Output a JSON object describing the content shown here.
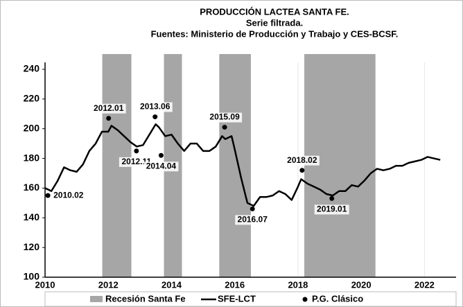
{
  "chart_data": {
    "type": "line",
    "title": "PRODUCCIÓN LACTEA SANTA FE.",
    "subtitle": "Serie filtrada.",
    "source": "Fuentes: Ministerio de Producción y Trabajo y CES-BCSF.",
    "xlim": [
      2010,
      2023
    ],
    "xticks": [
      2010,
      2012,
      2014,
      2016,
      2018,
      2020,
      2022
    ],
    "ylim": [
      100,
      240
    ],
    "yticks": [
      100,
      120,
      140,
      160,
      180,
      200,
      220,
      240
    ],
    "bands": {
      "name": "Recesión Santa Fe",
      "color": "#a6a6a6",
      "ranges": [
        [
          2011.81,
          2012.73
        ],
        [
          2013.76,
          2014.33
        ],
        [
          2015.51,
          2016.51
        ],
        [
          2018.2,
          2020.45
        ]
      ]
    },
    "series": [
      {
        "name": "SFE-LCT",
        "color": "#000000",
        "x": [
          2010.0,
          2010.2,
          2010.4,
          2010.6,
          2010.8,
          2011.0,
          2011.2,
          2011.4,
          2011.6,
          2011.8,
          2012.0,
          2012.1,
          2012.3,
          2012.5,
          2012.7,
          2012.9,
          2013.1,
          2013.3,
          2013.5,
          2013.6,
          2013.8,
          2014.0,
          2014.2,
          2014.4,
          2014.6,
          2014.8,
          2015.0,
          2015.2,
          2015.4,
          2015.6,
          2015.7,
          2015.9,
          2016.0,
          2016.2,
          2016.4,
          2016.6,
          2016.8,
          2017.0,
          2017.2,
          2017.4,
          2017.6,
          2017.8,
          2018.0,
          2018.1,
          2018.3,
          2018.5,
          2018.7,
          2018.9,
          2019.1,
          2019.3,
          2019.5,
          2019.7,
          2019.9,
          2020.1,
          2020.3,
          2020.5,
          2020.7,
          2020.9,
          2021.1,
          2021.3,
          2021.5,
          2021.7,
          2021.9,
          2022.1,
          2022.3,
          2022.5
        ],
        "values": [
          160,
          158,
          165,
          174,
          172,
          171,
          176,
          185,
          190,
          198,
          198,
          202,
          199,
          195,
          191,
          188,
          189,
          196,
          203,
          201,
          195,
          196,
          190,
          185,
          190,
          190,
          185,
          185,
          188,
          195,
          193,
          195,
          186,
          167,
          150,
          148,
          154,
          154,
          155,
          158,
          156,
          152,
          161,
          166,
          163,
          161,
          159,
          156,
          155,
          158,
          158,
          162,
          161,
          165,
          170,
          173,
          172,
          173,
          175,
          175,
          177,
          178,
          179,
          181,
          180,
          179
        ]
      }
    ],
    "points": {
      "name": "P.G. Clásico",
      "color": "#000000",
      "x": [
        2010.09,
        2012.01,
        2012.89,
        2013.48,
        2013.67,
        2015.68,
        2016.56,
        2018.13,
        2019.07
      ],
      "values": [
        155,
        207,
        185,
        208,
        182,
        201,
        146,
        172,
        153
      ],
      "labels": [
        "2010.02",
        "2012.01",
        "2012.11",
        "2013.06",
        "2014.04",
        "2015.09",
        "2016.07",
        "2018.02",
        "2019.01"
      ]
    }
  }
}
